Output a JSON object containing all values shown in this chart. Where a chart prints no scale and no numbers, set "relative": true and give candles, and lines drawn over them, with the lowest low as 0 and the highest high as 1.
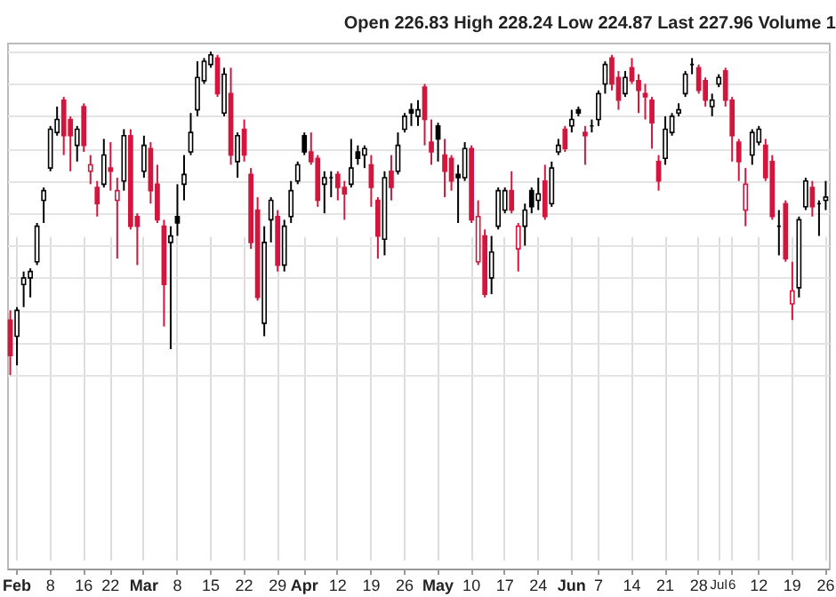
{
  "chart_data": {
    "type": "candlestick",
    "relative": true,
    "grid": true,
    "annotations": [
      "Open 226.83  High 228.24  Low 224.87  Last 227.96  Volume 1"
    ],
    "categories": [
      null,
      "Feb",
      null,
      null,
      null,
      null,
      "8",
      null,
      null,
      null,
      null,
      "16",
      null,
      null,
      null,
      "22",
      null,
      null,
      null,
      null,
      "Mar",
      null,
      null,
      null,
      null,
      "8",
      null,
      null,
      null,
      null,
      "15",
      null,
      null,
      null,
      null,
      "22",
      null,
      null,
      null,
      null,
      "29",
      null,
      null,
      null,
      "Apr",
      null,
      null,
      null,
      null,
      "12",
      null,
      null,
      null,
      null,
      "19",
      null,
      null,
      null,
      null,
      "26",
      null,
      null,
      null,
      null,
      "May",
      null,
      null,
      null,
      null,
      "10",
      null,
      null,
      null,
      null,
      "17",
      null,
      null,
      null,
      null,
      "24",
      null,
      null,
      null,
      null,
      "Jun",
      null,
      null,
      null,
      "7",
      null,
      null,
      null,
      null,
      "14",
      null,
      null,
      null,
      null,
      "21",
      null,
      null,
      null,
      null,
      "28",
      null,
      null,
      "Jul",
      null,
      "6",
      null,
      null,
      null,
      "12",
      null,
      null,
      null,
      null,
      "19",
      null,
      null,
      null,
      null,
      "26"
    ],
    "ohlc": [
      [
        0.17,
        0.2,
        0,
        0.06
      ],
      [
        0.12,
        0.21,
        0.03,
        0.2
      ],
      [
        0.28,
        0.32,
        0.21,
        0.3
      ],
      [
        0.3,
        0.33,
        0.24,
        0.32
      ],
      [
        0.35,
        0.47,
        0.34,
        0.46
      ],
      [
        0.54,
        0.58,
        0.47,
        0.57
      ],
      [
        0.64,
        0.77,
        0.63,
        0.76
      ],
      [
        0.75,
        0.83,
        0.74,
        0.79
      ],
      [
        0.85,
        0.86,
        0.68,
        0.74
      ],
      [
        0.79,
        0.8,
        0.63,
        0.74
      ],
      [
        0.71,
        0.77,
        0.66,
        0.76
      ],
      [
        0.83,
        0.84,
        0.69,
        0.71
      ],
      [
        0.63,
        0.68,
        0.59,
        0.65
      ],
      [
        0.58,
        0.6,
        0.49,
        0.53
      ],
      [
        0.59,
        0.73,
        0.58,
        0.68
      ],
      [
        0.64,
        0.72,
        0.57,
        0.63
      ],
      [
        0.54,
        0.61,
        0.36,
        0.57
      ],
      [
        0.6,
        0.76,
        0.57,
        0.74
      ],
      [
        0.74,
        0.76,
        0.45,
        0.46
      ],
      [
        0.49,
        0.5,
        0.34,
        0.46
      ],
      [
        0.63,
        0.74,
        0.61,
        0.71
      ],
      [
        0.7,
        0.72,
        0.53,
        0.57
      ],
      [
        0.59,
        0.65,
        0.47,
        0.48
      ],
      [
        0.46,
        0.48,
        0.15,
        0.28
      ],
      [
        0.41,
        0.46,
        0.08,
        0.43
      ],
      [
        0.49,
        0.59,
        0.43,
        0.47
      ],
      [
        0.59,
        0.68,
        0.54,
        0.62
      ],
      [
        0.69,
        0.81,
        0.68,
        0.75
      ],
      [
        0.82,
        0.97,
        0.8,
        0.92
      ],
      [
        0.91,
        0.98,
        0.9,
        0.97
      ],
      [
        0.96,
        1,
        0.95,
        0.99
      ],
      [
        0.98,
        0.99,
        0.86,
        0.87
      ],
      [
        0.81,
        0.95,
        0.8,
        0.93
      ],
      [
        0.87,
        0.95,
        0.65,
        0.68
      ],
      [
        0.66,
        0.75,
        0.61,
        0.74
      ],
      [
        0.76,
        0.79,
        0.66,
        0.68
      ],
      [
        0.62,
        0.64,
        0.39,
        0.41
      ],
      [
        0.51,
        0.55,
        0.23,
        0.24
      ],
      [
        0.16,
        0.46,
        0.12,
        0.41
      ],
      [
        0.48,
        0.55,
        0.41,
        0.54
      ],
      [
        0.49,
        0.51,
        0.32,
        0.34
      ],
      [
        0.34,
        0.48,
        0.32,
        0.46
      ],
      [
        0.49,
        0.6,
        0.47,
        0.57
      ],
      [
        0.6,
        0.66,
        0.59,
        0.65
      ],
      [
        0.74,
        0.75,
        0.68,
        0.69
      ],
      [
        0.69,
        0.75,
        0.65,
        0.66
      ],
      [
        0.67,
        0.68,
        0.52,
        0.54
      ],
      [
        0.59,
        0.63,
        0.5,
        0.61
      ],
      [
        0.61,
        0.63,
        0.55,
        0.61
      ],
      [
        0.62,
        0.63,
        0.54,
        0.58
      ],
      [
        0.58,
        0.6,
        0.48,
        0.56
      ],
      [
        0.59,
        0.73,
        0.58,
        0.64
      ],
      [
        0.69,
        0.71,
        0.65,
        0.67
      ],
      [
        0.68,
        0.71,
        0.64,
        0.7
      ],
      [
        0.65,
        0.68,
        0.52,
        0.58
      ],
      [
        0.54,
        0.55,
        0.36,
        0.43
      ],
      [
        0.42,
        0.63,
        0.37,
        0.61
      ],
      [
        0.63,
        0.68,
        0.54,
        0.58
      ],
      [
        0.63,
        0.75,
        0.62,
        0.71
      ],
      [
        0.76,
        0.81,
        0.75,
        0.8
      ],
      [
        0.82,
        0.84,
        0.77,
        0.81
      ],
      [
        0.8,
        0.85,
        0.77,
        0.82
      ],
      [
        0.89,
        0.9,
        0.71,
        0.79
      ],
      [
        0.72,
        0.79,
        0.65,
        0.69
      ],
      [
        0.77,
        0.78,
        0.66,
        0.73
      ],
      [
        0.68,
        0.73,
        0.55,
        0.63
      ],
      [
        0.67,
        0.68,
        0.57,
        0.6
      ],
      [
        0.62,
        0.65,
        0.47,
        0.61
      ],
      [
        0.61,
        0.72,
        0.6,
        0.7
      ],
      [
        0.7,
        0.71,
        0.47,
        0.48
      ],
      [
        0.35,
        0.54,
        0.34,
        0.49
      ],
      [
        0.43,
        0.45,
        0.24,
        0.25
      ],
      [
        0.3,
        0.43,
        0.25,
        0.38
      ],
      [
        0.46,
        0.58,
        0.45,
        0.57
      ],
      [
        0.51,
        0.58,
        0.5,
        0.57
      ],
      [
        0.57,
        0.63,
        0.5,
        0.51
      ],
      [
        0.39,
        0.47,
        0.32,
        0.46
      ],
      [
        0.46,
        0.53,
        0.4,
        0.51
      ],
      [
        0.57,
        0.58,
        0.5,
        0.52
      ],
      [
        0.54,
        0.61,
        0.51,
        0.56
      ],
      [
        0.6,
        0.65,
        0.48,
        0.49
      ],
      [
        0.53,
        0.66,
        0.52,
        0.64
      ],
      [
        0.69,
        0.73,
        0.68,
        0.71
      ],
      [
        0.76,
        0.77,
        0.69,
        0.7
      ],
      [
        0.77,
        0.82,
        0.75,
        0.79
      ],
      [
        0.82,
        0.83,
        0.8,
        0.81
      ],
      [
        0.75,
        0.77,
        0.65,
        0.74
      ],
      [
        0.77,
        0.79,
        0.75,
        0.77
      ],
      [
        0.79,
        0.88,
        0.77,
        0.87
      ],
      [
        0.9,
        0.97,
        0.87,
        0.96
      ],
      [
        0.98,
        0.99,
        0.88,
        0.9
      ],
      [
        0.92,
        0.94,
        0.82,
        0.85
      ],
      [
        0.87,
        0.94,
        0.86,
        0.92
      ],
      [
        0.95,
        0.98,
        0.9,
        0.91
      ],
      [
        0.91,
        0.93,
        0.81,
        0.88
      ],
      [
        0.87,
        0.9,
        0.79,
        0.86
      ],
      [
        0.85,
        0.86,
        0.7,
        0.78
      ],
      [
        0.66,
        0.68,
        0.57,
        0.6
      ],
      [
        0.67,
        0.8,
        0.65,
        0.76
      ],
      [
        0.75,
        0.81,
        0.74,
        0.8
      ],
      [
        0.81,
        0.84,
        0.8,
        0.82
      ],
      [
        0.87,
        0.94,
        0.86,
        0.93
      ],
      [
        0.96,
        0.98,
        0.93,
        0.96
      ],
      [
        0.95,
        0.96,
        0.87,
        0.88
      ],
      [
        0.91,
        0.92,
        0.83,
        0.85
      ],
      [
        0.83,
        0.87,
        0.8,
        0.85
      ],
      [
        0.9,
        0.93,
        0.89,
        0.92
      ],
      [
        0.94,
        0.95,
        0.83,
        0.85
      ],
      [
        0.85,
        0.86,
        0.66,
        0.74
      ],
      [
        0.72,
        0.73,
        0.6,
        0.66
      ],
      [
        0.51,
        0.64,
        0.46,
        0.59
      ],
      [
        0.68,
        0.76,
        0.65,
        0.75
      ],
      [
        0.72,
        0.77,
        0.71,
        0.76
      ],
      [
        0.71,
        0.73,
        0.6,
        0.61
      ],
      [
        0.66,
        0.68,
        0.48,
        0.49
      ],
      [
        0.46,
        0.51,
        0.37,
        0.46
      ],
      [
        0.53,
        0.54,
        0.35,
        0.36
      ],
      [
        0.22,
        0.35,
        0.17,
        0.26
      ],
      [
        0.27,
        0.49,
        0.24,
        0.48
      ],
      [
        0.52,
        0.61,
        0.51,
        0.6
      ],
      [
        0.58,
        0.6,
        0.49,
        0.52
      ],
      [
        0.53,
        0.54,
        0.43,
        0.53
      ],
      [
        0.54,
        0.6,
        0.51,
        0.55
      ]
    ],
    "colors": [
      "#d3163d",
      "#000000",
      "#000000",
      "#000000",
      "#000000",
      "#000000",
      "#000000",
      "#000000",
      "#d3163d",
      "#d3163d",
      "#000000",
      "#d3163d",
      "#d3163d",
      "#d3163d",
      "#000000",
      "#d3163d",
      "#d3163d",
      "#000000",
      "#d3163d",
      "#d3163d",
      "#000000",
      "#d3163d",
      "#d3163d",
      "#d3163d",
      "#000000",
      "#000000",
      "#000000",
      "#000000",
      "#000000",
      "#000000",
      "#000000",
      "#d3163d",
      "#000000",
      "#d3163d",
      "#000000",
      "#d3163d",
      "#d3163d",
      "#d3163d",
      "#000000",
      "#000000",
      "#d3163d",
      "#000000",
      "#000000",
      "#000000",
      "#000000",
      "#d3163d",
      "#d3163d",
      "#000000",
      "#000000",
      "#d3163d",
      "#d3163d",
      "#000000",
      "#000000",
      "#000000",
      "#d3163d",
      "#d3163d",
      "#000000",
      "#d3163d",
      "#000000",
      "#000000",
      "#000000",
      "#000000",
      "#d3163d",
      "#d3163d",
      "#000000",
      "#d3163d",
      "#d3163d",
      "#000000",
      "#000000",
      "#d3163d",
      "#d3163d",
      "#d3163d",
      "#000000",
      "#000000",
      "#000000",
      "#d3163d",
      "#d3163d",
      "#000000",
      "#000000",
      "#000000",
      "#d3163d",
      "#000000",
      "#000000",
      "#d3163d",
      "#000000",
      "#000000",
      "#d3163d",
      "#000000",
      "#000000",
      "#000000",
      "#d3163d",
      "#d3163d",
      "#000000",
      "#d3163d",
      "#d3163d",
      "#d3163d",
      "#d3163d",
      "#d3163d",
      "#000000",
      "#000000",
      "#000000",
      "#000000",
      "#000000",
      "#d3163d",
      "#d3163d",
      "#000000",
      "#000000",
      "#d3163d",
      "#d3163d",
      "#d3163d",
      "#d3163d",
      "#000000",
      "#000000",
      "#d3163d",
      "#d3163d",
      "#000000",
      "#d3163d",
      "#d3163d",
      "#000000",
      "#000000",
      "#d3163d",
      "#000000",
      "#000000"
    ]
  }
}
